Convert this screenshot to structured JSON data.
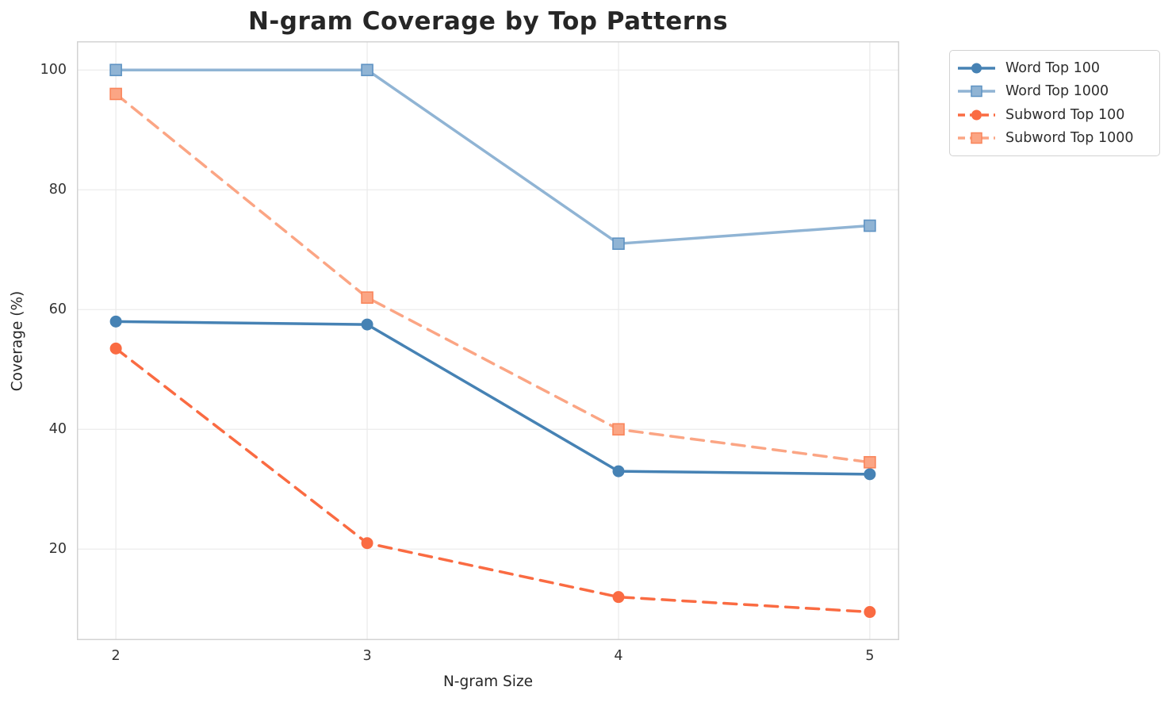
{
  "chart_data": {
    "type": "line",
    "title": "N-gram Coverage by Top Patterns",
    "xlabel": "N-gram Size",
    "ylabel": "Coverage (%)",
    "x": [
      2,
      3,
      4,
      5
    ],
    "series": [
      {
        "name": "Word Top 100",
        "values": [
          58,
          57.5,
          33,
          32.5
        ],
        "color": "#4682B4",
        "marker": "circle",
        "line_style": "solid"
      },
      {
        "name": "Word Top 1000",
        "values": [
          100,
          100,
          71,
          74
        ],
        "color": "#90B4D4",
        "marker_edge": "#5F93C3",
        "marker": "square",
        "line_style": "solid"
      },
      {
        "name": "Subword Top 100",
        "values": [
          53.5,
          21,
          12,
          9.5
        ],
        "color": "#FA6B42",
        "marker": "circle",
        "line_style": "dashed"
      },
      {
        "name": "Subword Top 1000",
        "values": [
          96,
          62,
          40,
          34.5
        ],
        "color": "#FBA584",
        "marker_edge": "#F9855B",
        "marker": "square",
        "line_style": "dashed"
      }
    ],
    "xticks": [
      "2",
      "3",
      "4",
      "5"
    ],
    "xtick_values": [
      2,
      3,
      4,
      5
    ],
    "yticks": [
      "20",
      "40",
      "60",
      "80",
      "100"
    ],
    "ytick_values": [
      20,
      40,
      60,
      80,
      100
    ],
    "xlim": [
      1.845,
      5.117
    ],
    "ylim": [
      4.8,
      104.8
    ],
    "grid": true,
    "legend_position": "outside-top-right"
  },
  "style": {
    "grid_color": "#ebebeb",
    "spine_color": "#d3d3d3",
    "title_color": "#262626",
    "tick_color": "#333333",
    "background": "#ffffff",
    "legend_border": "#d2d2d2"
  }
}
